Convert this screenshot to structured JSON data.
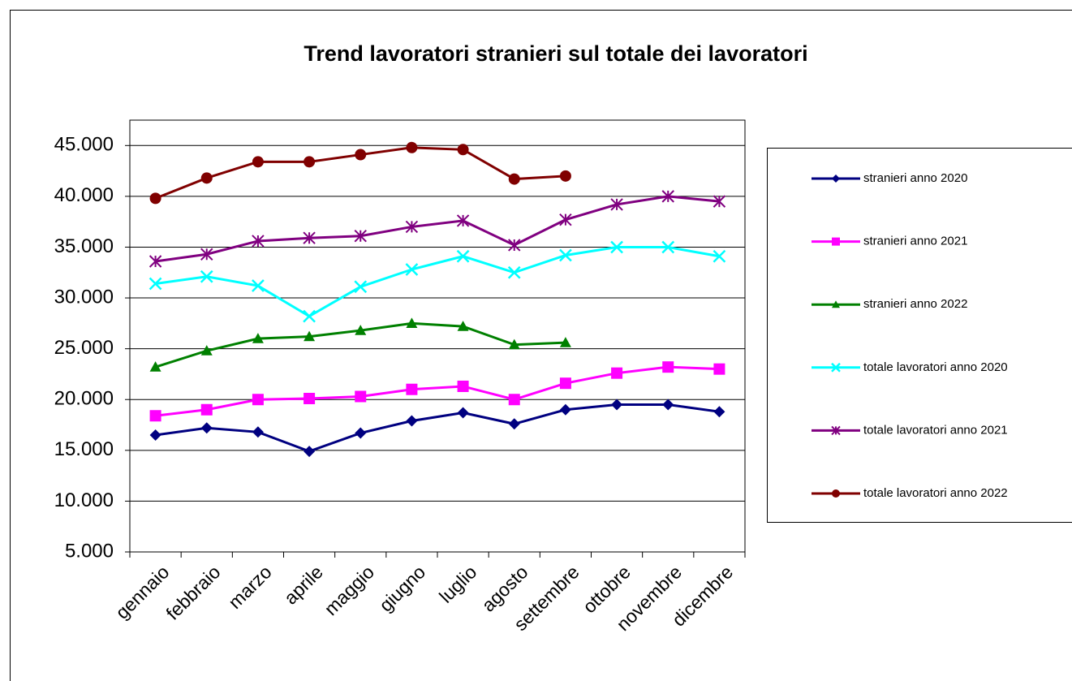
{
  "chart_data": {
    "type": "line",
    "title": "Trend lavoratori stranieri sul totale dei lavoratori",
    "categories": [
      "gennaio",
      "febbraio",
      "marzo",
      "aprile",
      "maggio",
      "giugno",
      "luglio",
      "agosto",
      "settembre",
      "ottobre",
      "novembre",
      "dicembre"
    ],
    "ylim": [
      5000,
      47500
    ],
    "yticks": [
      {
        "value": 5000,
        "label": "5.000"
      },
      {
        "value": 10000,
        "label": "10.000"
      },
      {
        "value": 15000,
        "label": "15.000"
      },
      {
        "value": 20000,
        "label": "20.000"
      },
      {
        "value": 25000,
        "label": "25.000"
      },
      {
        "value": 30000,
        "label": "30.000"
      },
      {
        "value": 35000,
        "label": "35.000"
      },
      {
        "value": 40000,
        "label": "40.000"
      },
      {
        "value": 45000,
        "label": "45.000"
      }
    ],
    "grid": true,
    "legend": "right",
    "series": [
      {
        "name": "stranieri anno 2020",
        "color": "#000080",
        "marker": "diamond",
        "values": [
          16500,
          17200,
          16800,
          14900,
          16700,
          17900,
          18700,
          17600,
          19000,
          19500,
          19500,
          18800
        ]
      },
      {
        "name": "stranieri anno 2021",
        "color": "#ff00ff",
        "marker": "square",
        "values": [
          18400,
          19000,
          20000,
          20100,
          20300,
          21000,
          21300,
          20000,
          21600,
          22600,
          23200,
          23000
        ]
      },
      {
        "name": "stranieri anno 2022",
        "color": "#008000",
        "marker": "triangle",
        "values": [
          23200,
          24800,
          26000,
          26200,
          26800,
          27500,
          27200,
          25400,
          25600,
          null,
          null,
          null
        ]
      },
      {
        "name": "totale lavoratori anno 2020",
        "color": "#00ffff",
        "marker": "x",
        "values": [
          31400,
          32100,
          31200,
          28200,
          31100,
          32800,
          34100,
          32500,
          34200,
          35000,
          35000,
          34100
        ]
      },
      {
        "name": "totale lavoratori anno 2021",
        "color": "#800080",
        "marker": "star",
        "values": [
          33600,
          34300,
          35600,
          35900,
          36100,
          37000,
          37600,
          35200,
          37700,
          39200,
          40000,
          39500
        ]
      },
      {
        "name": "totale lavoratori anno 2022",
        "color": "#800000",
        "marker": "circle",
        "values": [
          39800,
          41800,
          43400,
          43400,
          44100,
          44800,
          44600,
          41700,
          42000,
          null,
          null,
          null
        ]
      }
    ]
  }
}
